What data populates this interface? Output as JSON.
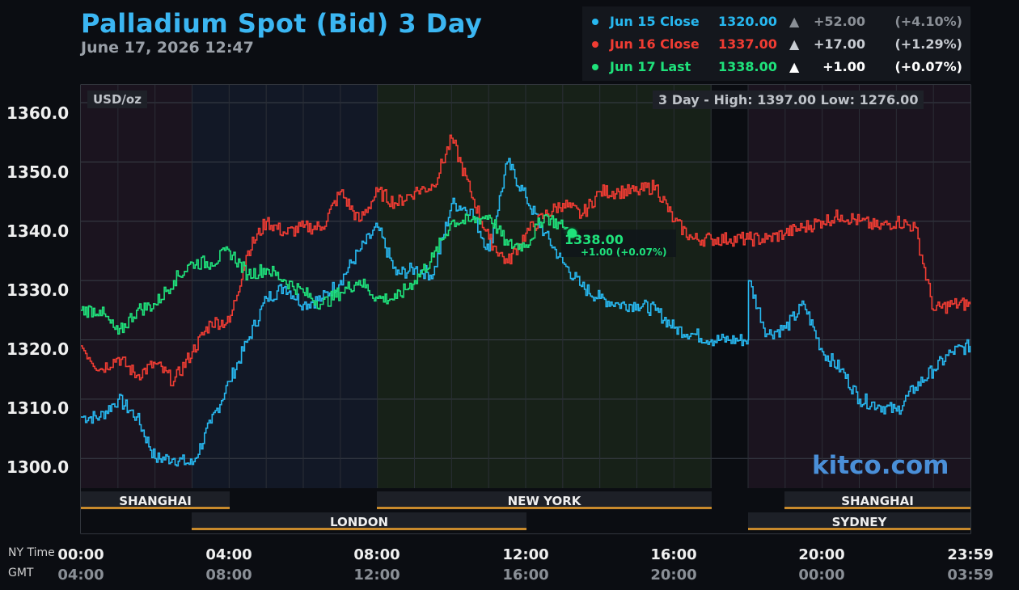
{
  "title": "Palladium Spot (Bid) 3 Day",
  "date": "June 17, 2026 12:47",
  "legend": [
    {
      "name": "Jun 15 Close",
      "value": "1320.00",
      "arrow": "▲",
      "change": "+52.00",
      "pct": "(+4.10%)",
      "color": "#27b8f0"
    },
    {
      "name": "Jun 16 Close",
      "value": "1337.00",
      "arrow": "▲",
      "change": "+17.00",
      "pct": "(+1.29%)",
      "color": "#f03c33"
    },
    {
      "name": "Jun 17 Last",
      "value": "1338.00",
      "arrow": "▲",
      "change": "+1.00",
      "pct": "(+0.07%)",
      "color": "#1fe27b"
    }
  ],
  "unit": "USD/oz",
  "high_low": "3 Day - High: 1397.00  Low: 1276.00",
  "last_label": "1338.00",
  "last_sub": "+1.00 (+0.07%)",
  "brand": "kitco.com",
  "ny_time_label": "NY Time",
  "gmt_label": "GMT",
  "sessions": {
    "shanghai_1": "SHANGHAI",
    "london": "LONDON",
    "new_york": "NEW YORK",
    "shanghai_2": "SHANGHAI",
    "sydney": "SYDNEY"
  },
  "x_ticks_ny": [
    "00:00",
    "04:00",
    "08:00",
    "12:00",
    "16:00",
    "20:00",
    "23:59"
  ],
  "x_ticks_gmt": [
    "04:00",
    "08:00",
    "12:00",
    "16:00",
    "20:00",
    "00:00",
    "03:59"
  ],
  "y_ticks": [
    "1360.0",
    "1350.0",
    "1340.0",
    "1330.0",
    "1320.0",
    "1310.0",
    "1300.0"
  ],
  "chart_data": {
    "type": "line",
    "x_unit": "hours (NY time)",
    "xlim": [
      0,
      24
    ],
    "ylim": [
      1295,
      1363
    ],
    "yticks": [
      1300,
      1310,
      1320,
      1330,
      1340,
      1350,
      1360
    ],
    "grid": true,
    "series": [
      {
        "name": "Jun 15 Close",
        "color": "#27b8f0",
        "points": [
          [
            0,
            1307
          ],
          [
            0.5,
            1307
          ],
          [
            1,
            1310
          ],
          [
            1.5,
            1307
          ],
          [
            2,
            1300
          ],
          [
            2.5,
            1300
          ],
          [
            3,
            1299
          ],
          [
            3.5,
            1306
          ],
          [
            4,
            1313
          ],
          [
            4.5,
            1320
          ],
          [
            5,
            1327
          ],
          [
            5.5,
            1329
          ],
          [
            6,
            1326
          ],
          [
            6.5,
            1327
          ],
          [
            7,
            1330
          ],
          [
            7.5,
            1335
          ],
          [
            8,
            1339
          ],
          [
            8.5,
            1331
          ],
          [
            9,
            1332
          ],
          [
            9.5,
            1331
          ],
          [
            10,
            1343
          ],
          [
            10.5,
            1342
          ],
          [
            11,
            1335
          ],
          [
            11.5,
            1350
          ],
          [
            12,
            1344
          ],
          [
            12.5,
            1338
          ],
          [
            13,
            1333
          ],
          [
            13.5,
            1329
          ],
          [
            14,
            1327
          ],
          [
            14.5,
            1326
          ],
          [
            15,
            1326
          ],
          [
            15.5,
            1325
          ],
          [
            16,
            1322
          ],
          [
            16.5,
            1321
          ],
          [
            17,
            1320
          ],
          [
            17.5,
            1320
          ],
          [
            18,
            1320
          ],
          [
            18.01,
            1330
          ],
          [
            18.5,
            1321
          ],
          [
            19,
            1322
          ],
          [
            19.5,
            1326
          ],
          [
            20,
            1318
          ],
          [
            20.5,
            1315
          ],
          [
            21,
            1310
          ],
          [
            21.5,
            1309
          ],
          [
            22,
            1308
          ],
          [
            22.5,
            1312
          ],
          [
            23,
            1315
          ],
          [
            23.5,
            1318
          ],
          [
            23.99,
            1319
          ]
        ]
      },
      {
        "name": "Jun 16 Close",
        "color": "#f03c33",
        "points": [
          [
            0,
            1319
          ],
          [
            0.5,
            1315
          ],
          [
            1,
            1317
          ],
          [
            1.5,
            1314
          ],
          [
            2,
            1316
          ],
          [
            2.5,
            1313
          ],
          [
            3,
            1318
          ],
          [
            3.5,
            1323
          ],
          [
            4,
            1323
          ],
          [
            4.5,
            1335
          ],
          [
            5,
            1340
          ],
          [
            5.5,
            1338
          ],
          [
            6,
            1339
          ],
          [
            6.5,
            1339
          ],
          [
            7,
            1345
          ],
          [
            7.5,
            1340
          ],
          [
            8,
            1345
          ],
          [
            8.5,
            1343
          ],
          [
            9,
            1345
          ],
          [
            9.5,
            1346
          ],
          [
            10,
            1354
          ],
          [
            10.5,
            1345
          ],
          [
            11,
            1337
          ],
          [
            11.5,
            1333
          ],
          [
            12,
            1338
          ],
          [
            12.5,
            1341
          ],
          [
            13,
            1343
          ],
          [
            13.5,
            1341
          ],
          [
            14,
            1345
          ],
          [
            14.5,
            1345
          ],
          [
            15,
            1345
          ],
          [
            15.5,
            1346
          ],
          [
            16,
            1340
          ],
          [
            16.5,
            1337
          ],
          [
            17,
            1337
          ],
          [
            17.5,
            1337
          ],
          [
            18,
            1337
          ],
          [
            18.5,
            1337
          ],
          [
            19,
            1338
          ],
          [
            19.5,
            1339
          ],
          [
            20,
            1340
          ],
          [
            20.5,
            1341
          ],
          [
            21,
            1340
          ],
          [
            21.5,
            1339
          ],
          [
            22,
            1340
          ],
          [
            22.5,
            1339
          ],
          [
            23,
            1325
          ],
          [
            23.5,
            1326
          ],
          [
            23.99,
            1326
          ]
        ]
      },
      {
        "name": "Jun 17 Last",
        "color": "#1fe27b",
        "points": [
          [
            0,
            1325
          ],
          [
            0.5,
            1325
          ],
          [
            1,
            1321
          ],
          [
            1.5,
            1325
          ],
          [
            2,
            1326
          ],
          [
            2.5,
            1330
          ],
          [
            3,
            1333
          ],
          [
            3.5,
            1333
          ],
          [
            4,
            1335
          ],
          [
            4.5,
            1331
          ],
          [
            5,
            1332
          ],
          [
            5.5,
            1330
          ],
          [
            6,
            1328
          ],
          [
            6.5,
            1326
          ],
          [
            7,
            1328
          ],
          [
            7.5,
            1330
          ],
          [
            8,
            1327
          ],
          [
            8.5,
            1327
          ],
          [
            9,
            1330
          ],
          [
            9.5,
            1334
          ],
          [
            10,
            1340
          ],
          [
            10.5,
            1340
          ],
          [
            11,
            1341
          ],
          [
            11.5,
            1336
          ],
          [
            12,
            1336
          ],
          [
            12.5,
            1341
          ],
          [
            13,
            1339
          ],
          [
            13.25,
            1338
          ]
        ]
      }
    ]
  }
}
